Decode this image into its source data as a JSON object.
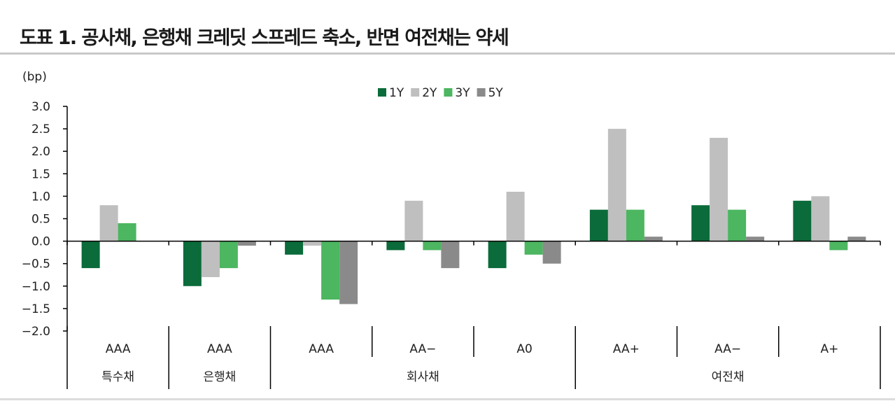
{
  "title": "도표 1. 공사채, 은행채 크레딧 스프레드 축소, 반면 여전채는 약세",
  "unit_label": "(bp)",
  "colors": {
    "1Y": "#0b6b3a",
    "2Y": "#bfbfbf",
    "3Y": "#4cb660",
    "5Y": "#8a8a8a",
    "axis": "#000000",
    "rule": "#c8c8c8"
  },
  "chart_data": {
    "type": "bar",
    "title": "도표 1. 공사채, 은행채 크레딧 스프레드 축소, 반면 여전채는 약세",
    "ylabel": "(bp)",
    "xlabel": "",
    "ylim": [
      -2.0,
      3.0
    ],
    "yticks": [
      "3.0",
      "2.5",
      "2.0",
      "1.5",
      "1.0",
      "0.5",
      "0.0",
      "−0.5",
      "−1.0",
      "−1.5",
      "−2.0"
    ],
    "ytick_values": [
      3.0,
      2.5,
      2.0,
      1.5,
      1.0,
      0.5,
      0.0,
      -0.5,
      -1.0,
      -1.5,
      -2.0
    ],
    "categories": [
      "AAA",
      "AAA",
      "AAA",
      "AA−",
      "A0",
      "AA+",
      "AA−",
      "A+"
    ],
    "groups": [
      {
        "label": "특수채",
        "span": [
          0,
          0
        ]
      },
      {
        "label": "은행채",
        "span": [
          1,
          1
        ]
      },
      {
        "label": "회사채",
        "span": [
          2,
          4
        ]
      },
      {
        "label": "여전채",
        "span": [
          5,
          7
        ]
      }
    ],
    "series": [
      {
        "name": "1Y",
        "values": [
          -0.6,
          -1.0,
          -0.3,
          -0.2,
          -0.6,
          0.7,
          0.8,
          0.9
        ]
      },
      {
        "name": "2Y",
        "values": [
          0.8,
          -0.8,
          -0.1,
          0.9,
          1.1,
          2.5,
          2.3,
          1.0
        ]
      },
      {
        "name": "3Y",
        "values": [
          0.4,
          -0.6,
          -1.3,
          -0.2,
          -0.3,
          0.7,
          0.7,
          -0.2
        ]
      },
      {
        "name": "5Y",
        "values": [
          0.0,
          -0.1,
          -1.4,
          -0.6,
          -0.5,
          0.1,
          0.1,
          0.1
        ]
      }
    ],
    "grid": false,
    "legend_position": "top-center"
  }
}
